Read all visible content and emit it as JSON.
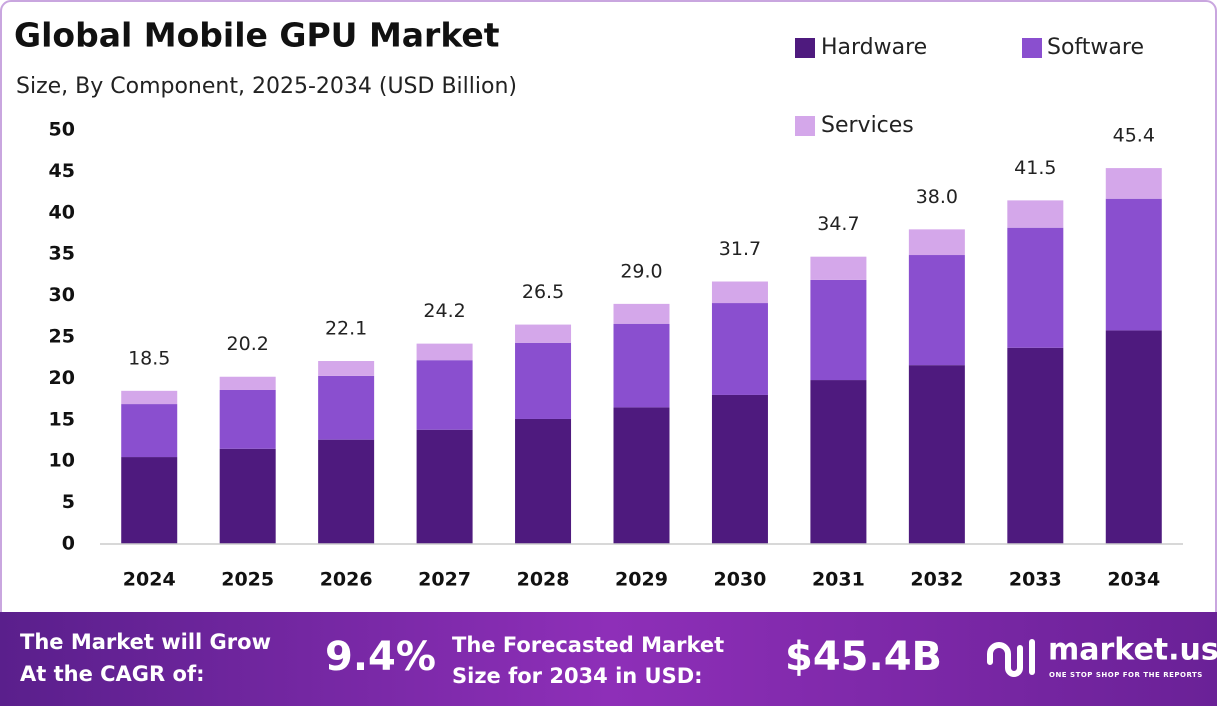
{
  "chart_data": {
    "type": "stacked-bar",
    "title": "Global Mobile GPU Market",
    "subtitle": "Size, By Component, 2025-2034 (USD Billion)",
    "categories": [
      "2024",
      "2025",
      "2026",
      "2027",
      "2028",
      "2029",
      "2030",
      "2031",
      "2032",
      "2033",
      "2034"
    ],
    "series": [
      {
        "name": "Hardware",
        "color": "#4e1a7e",
        "values": [
          10.5,
          11.5,
          12.6,
          13.8,
          15.1,
          16.5,
          18.0,
          19.8,
          21.6,
          23.7,
          25.8
        ]
      },
      {
        "name": "Software",
        "color": "#8a4fcf",
        "values": [
          6.4,
          7.1,
          7.7,
          8.4,
          9.2,
          10.1,
          11.1,
          12.1,
          13.3,
          14.5,
          15.9
        ]
      },
      {
        "name": "Services",
        "color": "#d4a7ea",
        "values": [
          1.6,
          1.6,
          1.8,
          2.0,
          2.2,
          2.4,
          2.6,
          2.8,
          3.1,
          3.3,
          3.7
        ]
      }
    ],
    "totals": [
      18.5,
      20.2,
      22.1,
      24.2,
      26.5,
      29.0,
      31.7,
      34.7,
      38.0,
      41.5,
      45.4
    ],
    "total_labels": [
      "18.5",
      "20.2",
      "22.1",
      "24.2",
      "26.5",
      "29.0",
      "31.7",
      "34.7",
      "38.0",
      "41.5",
      "45.4"
    ],
    "ylim": [
      0,
      50
    ],
    "yticks": [
      0,
      5,
      10,
      15,
      20,
      25,
      30,
      35,
      40,
      45,
      50
    ],
    "grid": false
  },
  "footer": {
    "cagr_text": [
      "The Market will Grow",
      "At the CAGR of:"
    ],
    "cagr_value": "9.4%",
    "forecast_text": [
      "The Forecasted Market",
      "Size for 2034 in USD:"
    ],
    "forecast_value": "$45.4B",
    "brand": "market.us",
    "tagline": "ONE STOP SHOP FOR THE REPORTS"
  }
}
